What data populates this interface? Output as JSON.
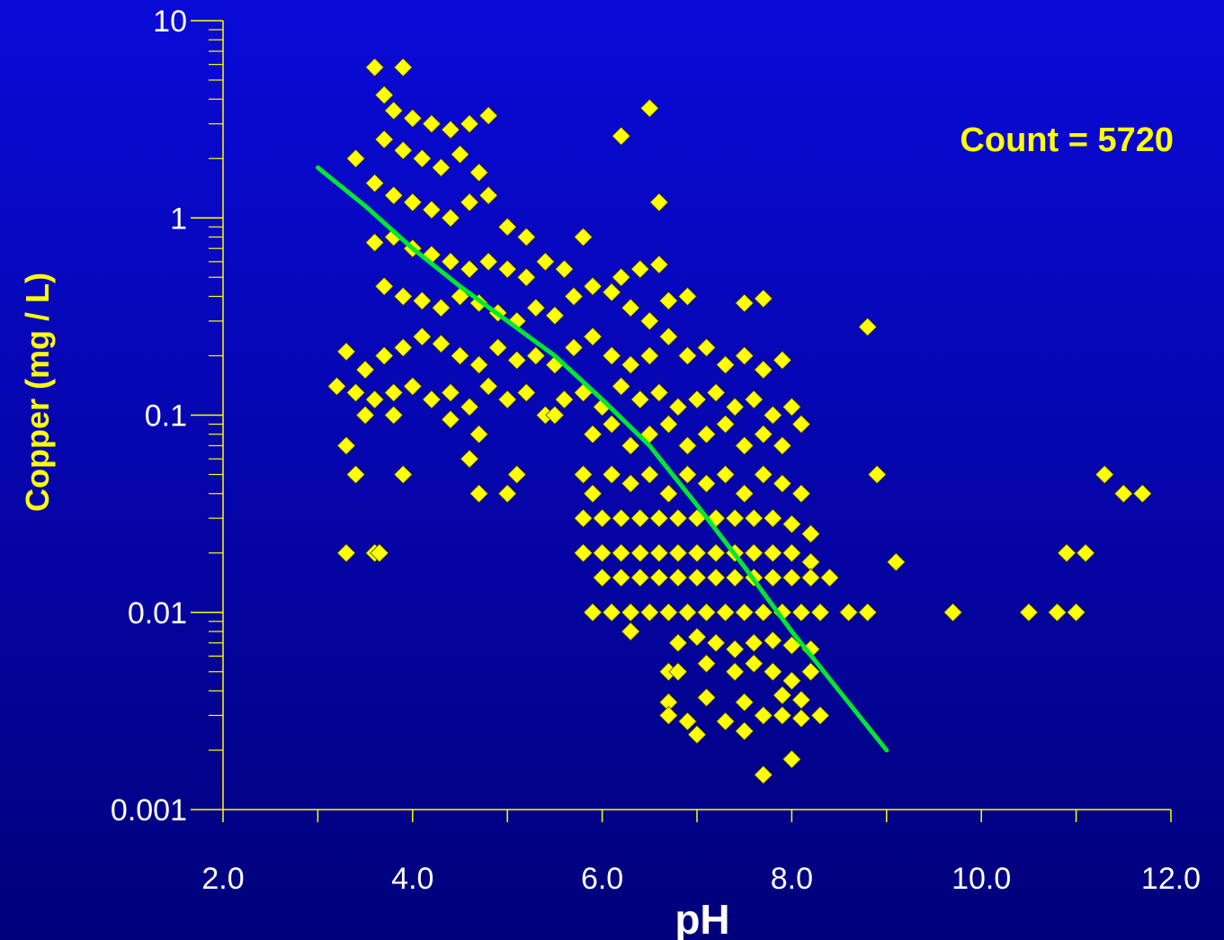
{
  "chart_data": {
    "type": "scatter",
    "xlabel": "pH",
    "ylabel": "Copper (mg / L)",
    "annotation": "Count = 5720",
    "xlim": [
      2.0,
      12.0
    ],
    "ylim": [
      0.001,
      10
    ],
    "y_scale": "log",
    "x_ticks": [
      "2.0",
      "4.0",
      "6.0",
      "8.0",
      "10.0",
      "12.0"
    ],
    "y_ticks": [
      "0.001",
      "0.01",
      "0.1",
      "1",
      "10"
    ],
    "colors": {
      "points": "#ffff00",
      "trend": "#00e632",
      "axes": "#ffff00",
      "xlabel": "#ffffff",
      "ylabel": "#ffff00",
      "annotation": "#ffff00"
    },
    "trend_line": {
      "x": [
        3.0,
        3.5,
        4.0,
        4.5,
        5.0,
        5.5,
        6.0,
        6.5,
        7.0,
        7.5,
        8.0,
        8.5,
        9.0
      ],
      "y": [
        1.8,
        1.15,
        0.7,
        0.45,
        0.3,
        0.2,
        0.12,
        0.07,
        0.035,
        0.017,
        0.008,
        0.004,
        0.002
      ]
    },
    "series": [
      {
        "marker": "diamond",
        "points": [
          [
            3.6,
            5.8
          ],
          [
            3.9,
            5.8
          ],
          [
            3.7,
            4.2
          ],
          [
            3.8,
            3.5
          ],
          [
            4.0,
            3.2
          ],
          [
            4.2,
            3.0
          ],
          [
            4.4,
            2.8
          ],
          [
            4.6,
            3.0
          ],
          [
            4.8,
            3.3
          ],
          [
            3.7,
            2.5
          ],
          [
            3.9,
            2.2
          ],
          [
            4.1,
            2.0
          ],
          [
            4.3,
            1.8
          ],
          [
            4.5,
            2.1
          ],
          [
            4.7,
            1.7
          ],
          [
            3.4,
            2.0
          ],
          [
            6.2,
            2.6
          ],
          [
            6.5,
            3.6
          ],
          [
            3.6,
            1.5
          ],
          [
            3.8,
            1.3
          ],
          [
            4.0,
            1.2
          ],
          [
            4.2,
            1.1
          ],
          [
            4.4,
            1.0
          ],
          [
            4.6,
            1.2
          ],
          [
            4.8,
            1.3
          ],
          [
            5.0,
            0.9
          ],
          [
            5.2,
            0.8
          ],
          [
            6.6,
            1.2
          ],
          [
            3.6,
            0.75
          ],
          [
            3.8,
            0.8
          ],
          [
            4.0,
            0.7
          ],
          [
            4.2,
            0.65
          ],
          [
            4.4,
            0.6
          ],
          [
            4.6,
            0.55
          ],
          [
            4.8,
            0.6
          ],
          [
            5.0,
            0.55
          ],
          [
            5.2,
            0.5
          ],
          [
            5.4,
            0.6
          ],
          [
            5.6,
            0.55
          ],
          [
            5.8,
            0.8
          ],
          [
            6.2,
            0.5
          ],
          [
            6.4,
            0.55
          ],
          [
            6.6,
            0.58
          ],
          [
            3.7,
            0.45
          ],
          [
            3.9,
            0.4
          ],
          [
            4.1,
            0.38
          ],
          [
            4.3,
            0.35
          ],
          [
            4.5,
            0.4
          ],
          [
            4.7,
            0.37
          ],
          [
            4.9,
            0.33
          ],
          [
            5.1,
            0.3
          ],
          [
            5.3,
            0.35
          ],
          [
            5.5,
            0.32
          ],
          [
            5.7,
            0.4
          ],
          [
            5.9,
            0.45
          ],
          [
            6.1,
            0.42
          ],
          [
            6.3,
            0.35
          ],
          [
            6.5,
            0.3
          ],
          [
            6.7,
            0.38
          ],
          [
            6.9,
            0.4
          ],
          [
            7.5,
            0.37
          ],
          [
            7.7,
            0.39
          ],
          [
            3.3,
            0.21
          ],
          [
            3.5,
            0.17
          ],
          [
            3.7,
            0.2
          ],
          [
            3.9,
            0.22
          ],
          [
            4.1,
            0.25
          ],
          [
            4.3,
            0.23
          ],
          [
            4.5,
            0.2
          ],
          [
            4.7,
            0.18
          ],
          [
            4.9,
            0.22
          ],
          [
            5.1,
            0.19
          ],
          [
            5.3,
            0.2
          ],
          [
            5.5,
            0.18
          ],
          [
            5.7,
            0.22
          ],
          [
            5.9,
            0.25
          ],
          [
            6.1,
            0.2
          ],
          [
            6.3,
            0.18
          ],
          [
            6.5,
            0.2
          ],
          [
            6.7,
            0.25
          ],
          [
            6.9,
            0.2
          ],
          [
            7.1,
            0.22
          ],
          [
            7.3,
            0.18
          ],
          [
            7.5,
            0.2
          ],
          [
            7.7,
            0.17
          ],
          [
            7.9,
            0.19
          ],
          [
            8.8,
            0.28
          ],
          [
            3.2,
            0.14
          ],
          [
            3.4,
            0.13
          ],
          [
            3.6,
            0.12
          ],
          [
            3.8,
            0.13
          ],
          [
            4.0,
            0.14
          ],
          [
            4.2,
            0.12
          ],
          [
            4.4,
            0.13
          ],
          [
            4.6,
            0.11
          ],
          [
            4.8,
            0.14
          ],
          [
            5.0,
            0.12
          ],
          [
            5.2,
            0.13
          ],
          [
            5.4,
            0.1
          ],
          [
            5.6,
            0.12
          ],
          [
            5.8,
            0.13
          ],
          [
            6.0,
            0.11
          ],
          [
            6.2,
            0.14
          ],
          [
            6.4,
            0.12
          ],
          [
            6.6,
            0.13
          ],
          [
            6.8,
            0.11
          ],
          [
            7.0,
            0.12
          ],
          [
            7.2,
            0.13
          ],
          [
            7.4,
            0.11
          ],
          [
            7.6,
            0.12
          ],
          [
            7.8,
            0.1
          ],
          [
            8.0,
            0.11
          ],
          [
            3.5,
            0.1
          ],
          [
            3.8,
            0.1
          ],
          [
            4.4,
            0.095
          ],
          [
            4.7,
            0.08
          ],
          [
            5.5,
            0.1
          ],
          [
            5.9,
            0.08
          ],
          [
            6.1,
            0.09
          ],
          [
            6.3,
            0.07
          ],
          [
            6.5,
            0.08
          ],
          [
            6.7,
            0.09
          ],
          [
            6.9,
            0.07
          ],
          [
            7.1,
            0.08
          ],
          [
            7.3,
            0.09
          ],
          [
            7.5,
            0.07
          ],
          [
            7.7,
            0.08
          ],
          [
            7.9,
            0.07
          ],
          [
            8.1,
            0.09
          ],
          [
            3.3,
            0.07
          ],
          [
            3.4,
            0.05
          ],
          [
            3.9,
            0.05
          ],
          [
            4.6,
            0.06
          ],
          [
            4.7,
            0.04
          ],
          [
            5.0,
            0.04
          ],
          [
            5.1,
            0.05
          ],
          [
            5.8,
            0.05
          ],
          [
            5.9,
            0.04
          ],
          [
            6.1,
            0.05
          ],
          [
            6.3,
            0.045
          ],
          [
            6.5,
            0.05
          ],
          [
            6.7,
            0.04
          ],
          [
            6.9,
            0.05
          ],
          [
            7.1,
            0.045
          ],
          [
            7.3,
            0.05
          ],
          [
            7.5,
            0.04
          ],
          [
            7.7,
            0.05
          ],
          [
            7.9,
            0.045
          ],
          [
            8.1,
            0.04
          ],
          [
            8.9,
            0.05
          ],
          [
            11.3,
            0.05
          ],
          [
            11.5,
            0.04
          ],
          [
            11.7,
            0.04
          ],
          [
            5.8,
            0.03
          ],
          [
            6.0,
            0.03
          ],
          [
            6.2,
            0.03
          ],
          [
            6.4,
            0.03
          ],
          [
            6.6,
            0.03
          ],
          [
            6.8,
            0.03
          ],
          [
            7.0,
            0.03
          ],
          [
            7.2,
            0.03
          ],
          [
            7.4,
            0.03
          ],
          [
            7.6,
            0.03
          ],
          [
            7.8,
            0.03
          ],
          [
            8.0,
            0.028
          ],
          [
            8.2,
            0.025
          ],
          [
            3.3,
            0.02
          ],
          [
            3.6,
            0.02
          ],
          [
            3.65,
            0.02
          ],
          [
            5.8,
            0.02
          ],
          [
            6.0,
            0.02
          ],
          [
            6.2,
            0.02
          ],
          [
            6.4,
            0.02
          ],
          [
            6.6,
            0.02
          ],
          [
            6.8,
            0.02
          ],
          [
            7.0,
            0.02
          ],
          [
            7.2,
            0.02
          ],
          [
            7.4,
            0.02
          ],
          [
            7.6,
            0.02
          ],
          [
            7.8,
            0.02
          ],
          [
            8.0,
            0.02
          ],
          [
            8.2,
            0.018
          ],
          [
            9.1,
            0.018
          ],
          [
            10.9,
            0.02
          ],
          [
            11.1,
            0.02
          ],
          [
            6.0,
            0.015
          ],
          [
            6.2,
            0.015
          ],
          [
            6.4,
            0.015
          ],
          [
            6.6,
            0.015
          ],
          [
            6.8,
            0.015
          ],
          [
            7.0,
            0.015
          ],
          [
            7.2,
            0.015
          ],
          [
            7.4,
            0.015
          ],
          [
            7.6,
            0.015
          ],
          [
            7.8,
            0.015
          ],
          [
            8.0,
            0.015
          ],
          [
            8.2,
            0.015
          ],
          [
            8.4,
            0.015
          ],
          [
            5.9,
            0.01
          ],
          [
            6.1,
            0.01
          ],
          [
            6.3,
            0.01
          ],
          [
            6.5,
            0.01
          ],
          [
            6.7,
            0.01
          ],
          [
            6.9,
            0.01
          ],
          [
            7.1,
            0.01
          ],
          [
            7.3,
            0.01
          ],
          [
            7.5,
            0.01
          ],
          [
            7.7,
            0.01
          ],
          [
            7.9,
            0.01
          ],
          [
            8.1,
            0.01
          ],
          [
            8.3,
            0.01
          ],
          [
            8.6,
            0.01
          ],
          [
            8.8,
            0.01
          ],
          [
            9.7,
            0.01
          ],
          [
            10.5,
            0.01
          ],
          [
            10.8,
            0.01
          ],
          [
            11.0,
            0.01
          ],
          [
            6.3,
            0.008
          ],
          [
            6.8,
            0.007
          ],
          [
            7.0,
            0.0075
          ],
          [
            7.2,
            0.007
          ],
          [
            7.4,
            0.0065
          ],
          [
            7.6,
            0.007
          ],
          [
            7.8,
            0.0072
          ],
          [
            8.0,
            0.0068
          ],
          [
            8.2,
            0.0065
          ],
          [
            6.7,
            0.005
          ],
          [
            6.8,
            0.005
          ],
          [
            7.1,
            0.0055
          ],
          [
            7.4,
            0.005
          ],
          [
            7.6,
            0.0055
          ],
          [
            7.8,
            0.005
          ],
          [
            8.0,
            0.0045
          ],
          [
            8.2,
            0.005
          ],
          [
            6.7,
            0.0035
          ],
          [
            7.1,
            0.0037
          ],
          [
            7.5,
            0.0035
          ],
          [
            7.9,
            0.0038
          ],
          [
            8.1,
            0.0036
          ],
          [
            6.7,
            0.003
          ],
          [
            6.9,
            0.0028
          ],
          [
            7.0,
            0.0024
          ],
          [
            7.3,
            0.0028
          ],
          [
            7.5,
            0.0025
          ],
          [
            7.7,
            0.003
          ],
          [
            7.9,
            0.003
          ],
          [
            8.1,
            0.0029
          ],
          [
            8.3,
            0.003
          ],
          [
            7.7,
            0.0015
          ],
          [
            8.0,
            0.0018
          ]
        ]
      }
    ]
  }
}
